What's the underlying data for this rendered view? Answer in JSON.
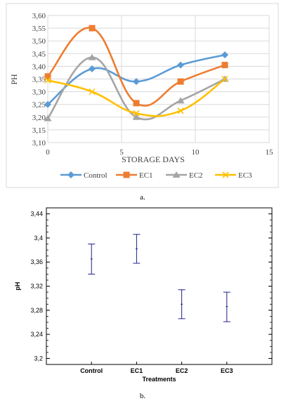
{
  "chart_data": [
    {
      "type": "line",
      "panel_caption": "a.",
      "xlabel": "STORAGE DAYS",
      "ylabel": "PH",
      "xlim": [
        0,
        15
      ],
      "ylim": [
        3.1,
        3.6
      ],
      "xticks": [
        "0",
        "5",
        "10",
        "15"
      ],
      "yticks": [
        "3,10",
        "3,15",
        "3,20",
        "3,25",
        "3,30",
        "3,35",
        "3,40",
        "3,45",
        "3,50",
        "3,55",
        "3,60"
      ],
      "x": [
        0,
        3,
        6,
        9,
        12
      ],
      "grid": true,
      "legend_position": "bottom",
      "series": [
        {
          "name": "Control",
          "color": "#5b9bd5",
          "marker": "diamond",
          "values": [
            3.25,
            3.39,
            3.34,
            3.405,
            3.445
          ]
        },
        {
          "name": "EC1",
          "color": "#ed7d31",
          "marker": "square",
          "values": [
            3.36,
            3.55,
            3.255,
            3.34,
            3.405
          ]
        },
        {
          "name": "EC2",
          "color": "#a5a5a5",
          "marker": "triangle",
          "values": [
            3.195,
            3.435,
            3.2,
            3.265,
            3.35
          ]
        },
        {
          "name": "EC3",
          "color": "#ffc000",
          "marker": "x",
          "values": [
            3.345,
            3.3,
            3.215,
            3.225,
            3.35
          ]
        }
      ]
    },
    {
      "type": "errorbar",
      "panel_caption": "b.",
      "xlabel": "Treatments",
      "ylabel": "pH",
      "ylim": [
        3.19,
        3.45
      ],
      "yticks": [
        "3,2",
        "3,24",
        "3,28",
        "3,32",
        "3,36",
        "3,4",
        "3,44"
      ],
      "ytick_values": [
        3.2,
        3.24,
        3.28,
        3.32,
        3.36,
        3.4,
        3.44
      ],
      "categories": [
        "Control",
        "EC1",
        "EC2",
        "EC3"
      ],
      "means": [
        3.365,
        3.382,
        3.29,
        3.286
      ],
      "lower": [
        3.34,
        3.358,
        3.266,
        3.261
      ],
      "upper": [
        3.39,
        3.406,
        3.314,
        3.31
      ],
      "color": "#1f1f8c"
    }
  ]
}
